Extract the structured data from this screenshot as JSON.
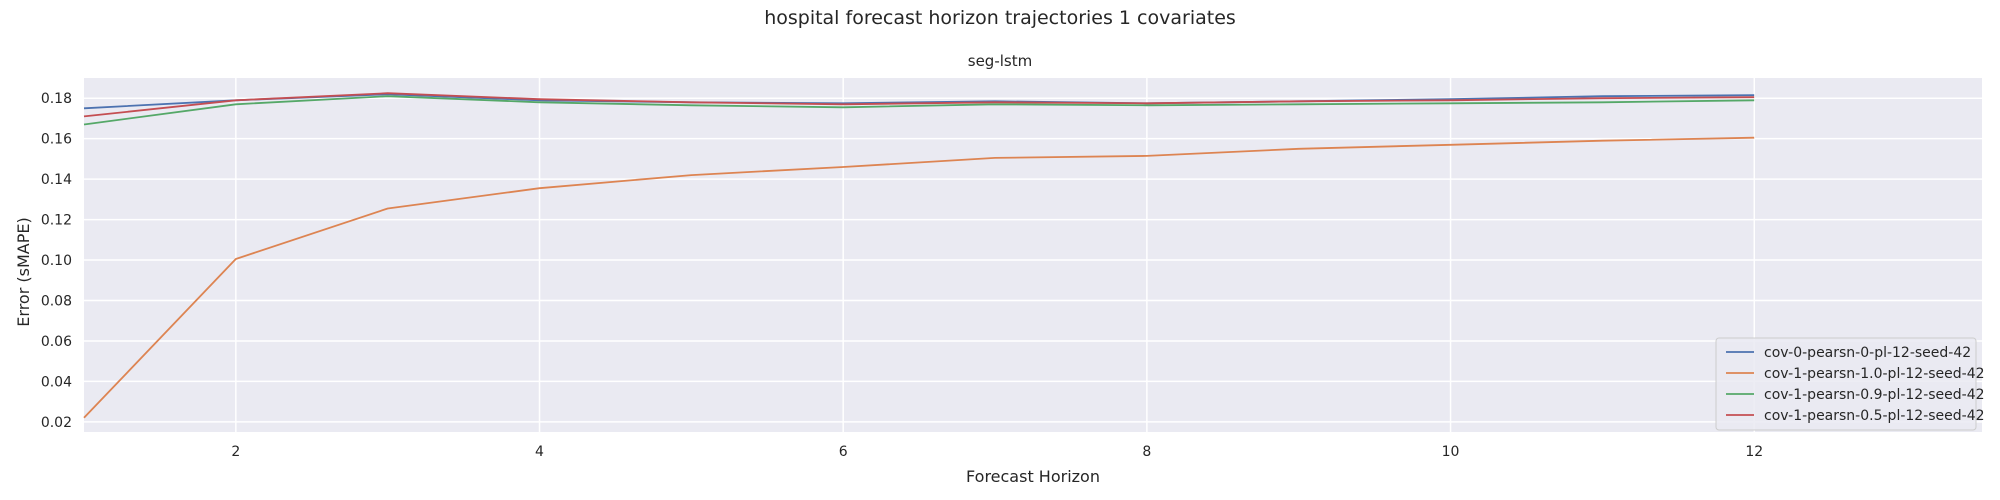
{
  "figure": {
    "suptitle": "hospital forecast horizon trajectories 1 covariates"
  },
  "chart_data": {
    "type": "line",
    "title": "seg-lstm",
    "xlabel": "Forecast Horizon",
    "ylabel": "Error (sMAPE)",
    "xlim": [
      1,
      13.5
    ],
    "ylim": [
      0.015,
      0.19
    ],
    "xticks": [
      2,
      4,
      6,
      8,
      10,
      12
    ],
    "yticks": [
      0.02,
      0.04,
      0.06,
      0.08,
      0.1,
      0.12,
      0.14,
      0.16,
      0.18
    ],
    "ytick_labels": [
      "0.02",
      "0.04",
      "0.06",
      "0.08",
      "0.10",
      "0.12",
      "0.14",
      "0.16",
      "0.18"
    ],
    "grid": true,
    "background": "#eaeaf2",
    "legend_position": "lower-right",
    "x": [
      1,
      2,
      3,
      4,
      5,
      6,
      7,
      8,
      9,
      10,
      11,
      12
    ],
    "series": [
      {
        "name": "cov-0-pearsn-0-pl-12-seed-42",
        "color": "#4c72b0",
        "values": [
          0.175,
          0.179,
          0.182,
          0.179,
          0.178,
          0.1775,
          0.1785,
          0.1775,
          0.1785,
          0.1795,
          0.181,
          0.1815
        ]
      },
      {
        "name": "cov-1-pearsn-1.0-pl-12-seed-42",
        "color": "#dd8452",
        "values": [
          0.022,
          0.1005,
          0.1255,
          0.1355,
          0.142,
          0.146,
          0.1505,
          0.1515,
          0.155,
          0.157,
          0.159,
          0.1605
        ]
      },
      {
        "name": "cov-1-pearsn-0.9-pl-12-seed-42",
        "color": "#55a868",
        "values": [
          0.167,
          0.177,
          0.181,
          0.178,
          0.1765,
          0.1755,
          0.177,
          0.1765,
          0.177,
          0.1775,
          0.178,
          0.179
        ]
      },
      {
        "name": "cov-1-pearsn-0.5-pl-12-seed-42",
        "color": "#c44e52",
        "values": [
          0.171,
          0.179,
          0.1825,
          0.1795,
          0.178,
          0.177,
          0.178,
          0.1775,
          0.1785,
          0.179,
          0.18,
          0.1805
        ]
      }
    ]
  }
}
